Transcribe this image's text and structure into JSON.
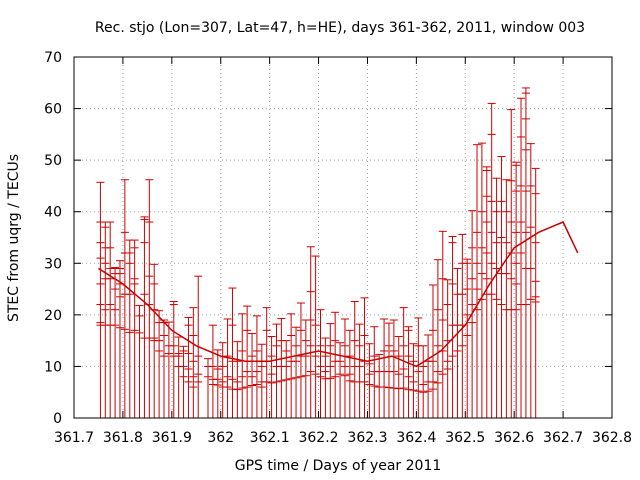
{
  "chart_data": {
    "type": "errorbar",
    "title": "Rec. stjo (Lon=307, Lat=47, h=HE), days 361-362, 2011, window 003",
    "xlabel": "GPS time / Days of year 2011",
    "ylabel": "STEC from uqrg / TECUs",
    "xlim": [
      361.7,
      362.8
    ],
    "ylim": [
      0,
      70
    ],
    "xticks": [
      361.7,
      361.8,
      361.9,
      362.0,
      362.1,
      362.2,
      362.3,
      362.4,
      362.5,
      362.6,
      362.7,
      362.8
    ],
    "xtick_labels": [
      "361.7",
      "361.8",
      "361.9",
      "362",
      "362.1",
      "362.2",
      "362.3",
      "362.4",
      "362.5",
      "362.6",
      "362.7",
      "362.8"
    ],
    "yticks": [
      0,
      10,
      20,
      30,
      40,
      50,
      60,
      70
    ],
    "ytick_labels": [
      "0",
      "10",
      "20",
      "30",
      "40",
      "50",
      "60",
      "70"
    ],
    "grid": true,
    "series": [
      {
        "name": "mean",
        "color": "#cc0000",
        "x": [
          361.75,
          361.8,
          361.85,
          361.9,
          361.95,
          362.0,
          362.05,
          362.1,
          362.15,
          362.2,
          362.25,
          362.3,
          362.35,
          362.4,
          362.45,
          362.5,
          362.55,
          362.6,
          362.65,
          362.7,
          362.73
        ],
        "y": [
          29,
          26,
          22,
          17,
          14,
          12,
          11,
          11,
          12,
          13,
          12,
          11,
          12,
          10,
          13,
          18,
          26,
          33,
          36,
          38,
          32
        ]
      }
    ],
    "points": [
      {
        "x": 361.754,
        "lo": 0,
        "hi": 45.7,
        "ticks": [
          45.7,
          38,
          34,
          31,
          26,
          22,
          18.5,
          18
        ]
      },
      {
        "x": 361.764,
        "lo": 0,
        "hi": 38.0,
        "ticks": [
          38,
          37,
          33,
          30,
          27,
          21,
          18
        ]
      },
      {
        "x": 361.774,
        "lo": 0,
        "hi": 38.0,
        "ticks": [
          38,
          33,
          29,
          27,
          22,
          18
        ]
      },
      {
        "x": 361.784,
        "lo": 0,
        "hi": 29.2,
        "ticks": [
          29.2,
          29,
          28,
          25,
          21,
          18
        ]
      },
      {
        "x": 361.794,
        "lo": 0,
        "hi": 30.5,
        "ticks": [
          30.5,
          29,
          28,
          26,
          23.5,
          17.5
        ]
      },
      {
        "x": 361.804,
        "lo": 0,
        "hi": 46.2,
        "ticks": [
          46.2,
          36,
          32,
          24,
          17.2
        ]
      },
      {
        "x": 361.814,
        "lo": 0,
        "hi": 34.5,
        "ticks": [
          34.5,
          32,
          30,
          24,
          16.6
        ]
      },
      {
        "x": 361.824,
        "lo": 0,
        "hi": 34.5,
        "ticks": [
          34.5,
          33,
          27,
          26,
          17
        ]
      },
      {
        "x": 361.834,
        "lo": 0,
        "hi": 21.8,
        "ticks": [
          21.8,
          19.8,
          16.5
        ]
      },
      {
        "x": 361.844,
        "lo": 0,
        "hi": 39.0,
        "ticks": [
          39,
          38.5,
          34,
          24,
          15.5
        ]
      },
      {
        "x": 361.854,
        "lo": 0,
        "hi": 46.2,
        "ticks": [
          46.2,
          38,
          27.5,
          22,
          15.5
        ]
      },
      {
        "x": 361.864,
        "lo": 0,
        "hi": 29.8,
        "ticks": [
          29.8,
          26,
          21,
          15.5,
          15
        ]
      },
      {
        "x": 361.874,
        "lo": 0,
        "hi": 20.8,
        "ticks": [
          20.8,
          18.5,
          15,
          13
        ]
      },
      {
        "x": 361.884,
        "lo": 0,
        "hi": 19.0,
        "ticks": [
          19,
          18.5,
          16,
          12
        ]
      },
      {
        "x": 361.894,
        "lo": 0,
        "hi": 18.6,
        "ticks": [
          18.6,
          14,
          12.5
        ]
      },
      {
        "x": 361.904,
        "lo": 0,
        "hi": 22.6,
        "ticks": [
          22.6,
          22,
          14,
          12
        ]
      },
      {
        "x": 361.914,
        "lo": 0,
        "hi": 15.7,
        "ticks": [
          15.7,
          12.5,
          12,
          10
        ]
      },
      {
        "x": 361.924,
        "lo": 0,
        "hi": 13.9,
        "ticks": [
          13.9,
          13,
          10,
          8
        ]
      },
      {
        "x": 361.934,
        "lo": 0,
        "hi": 19.5,
        "ticks": [
          19.5,
          18,
          12.5,
          9.5,
          7
        ]
      },
      {
        "x": 361.944,
        "lo": 0,
        "hi": 21.4,
        "ticks": [
          21.4,
          16,
          11,
          8,
          6
        ]
      },
      {
        "x": 361.954,
        "lo": 0,
        "hi": 27.5,
        "ticks": [
          27.5,
          12,
          8.5,
          7
        ]
      },
      {
        "x": 361.974,
        "lo": 0,
        "hi": 11.5,
        "ticks": [
          11.5,
          10,
          8
        ]
      },
      {
        "x": 361.984,
        "lo": 0,
        "hi": 18.0,
        "ticks": [
          18,
          10,
          7.5,
          6.5
        ]
      },
      {
        "x": 361.994,
        "lo": 0,
        "hi": 13.2,
        "ticks": [
          13.2,
          9.5,
          7.5,
          6.4
        ]
      },
      {
        "x": 362.004,
        "lo": 0,
        "hi": 14.6,
        "ticks": [
          14.6,
          10,
          7,
          6
        ]
      },
      {
        "x": 362.014,
        "lo": 0,
        "hi": 19.2,
        "ticks": [
          19.2,
          12,
          8,
          6
        ]
      },
      {
        "x": 362.024,
        "lo": 0,
        "hi": 25.2,
        "ticks": [
          25.2,
          18,
          11,
          7.5,
          5.6
        ]
      },
      {
        "x": 362.034,
        "lo": 0,
        "hi": 14.8,
        "ticks": [
          14.8,
          11,
          7,
          5.5
        ]
      },
      {
        "x": 362.044,
        "lo": 0,
        "hi": 20.2,
        "ticks": [
          20.2,
          13,
          8,
          5.8
        ]
      },
      {
        "x": 362.054,
        "lo": 0,
        "hi": 21.7,
        "ticks": [
          21.7,
          17,
          9,
          6
        ]
      },
      {
        "x": 362.064,
        "lo": 0,
        "hi": 16.4,
        "ticks": [
          16.4,
          12,
          8,
          6.3
        ]
      },
      {
        "x": 362.074,
        "lo": 0,
        "hi": 19.8,
        "ticks": [
          19.8,
          13,
          9,
          6.5
        ]
      },
      {
        "x": 362.084,
        "lo": 0,
        "hi": 14.3,
        "ticks": [
          14.3,
          10,
          7,
          6
        ]
      },
      {
        "x": 362.094,
        "lo": 0,
        "hi": 21.4,
        "ticks": [
          21.4,
          17,
          11,
          7
        ]
      },
      {
        "x": 362.104,
        "lo": 0,
        "hi": 15.8,
        "ticks": [
          15.8,
          12,
          8.5,
          6.8
        ]
      },
      {
        "x": 362.114,
        "lo": 0,
        "hi": 18.2,
        "ticks": [
          18.2,
          14,
          10,
          7
        ]
      },
      {
        "x": 362.124,
        "lo": 0,
        "hi": 19.3,
        "ticks": [
          19.3,
          15,
          10,
          7.2
        ]
      },
      {
        "x": 362.134,
        "lo": 0,
        "hi": 15.0,
        "ticks": [
          15,
          13,
          10,
          7.4
        ]
      },
      {
        "x": 362.144,
        "lo": 0,
        "hi": 20.2,
        "ticks": [
          20.2,
          16,
          11,
          7.6
        ]
      },
      {
        "x": 362.154,
        "lo": 0,
        "hi": 17.6,
        "ticks": [
          17.6,
          14,
          11,
          7.8
        ]
      },
      {
        "x": 362.164,
        "lo": 0,
        "hi": 22.3,
        "ticks": [
          22.3,
          17,
          12,
          8
        ]
      },
      {
        "x": 362.174,
        "lo": 0,
        "hi": 19.0,
        "ticks": [
          19,
          15,
          12,
          8.2
        ]
      },
      {
        "x": 362.184,
        "lo": 0,
        "hi": 33.2,
        "ticks": [
          33.2,
          24.5,
          19,
          14,
          9
        ]
      },
      {
        "x": 362.194,
        "lo": 0,
        "hi": 31.4,
        "ticks": [
          31.4,
          18,
          12,
          8.5
        ]
      },
      {
        "x": 362.204,
        "lo": 0,
        "hi": 21.0,
        "ticks": [
          21,
          14,
          10,
          8
        ]
      },
      {
        "x": 362.214,
        "lo": 0,
        "hi": 15.5,
        "ticks": [
          15.5,
          12,
          9,
          7.6
        ]
      },
      {
        "x": 362.224,
        "lo": 0,
        "hi": 18.3,
        "ticks": [
          18.3,
          14,
          10,
          7.7
        ]
      },
      {
        "x": 362.234,
        "lo": 0,
        "hi": 20.5,
        "ticks": [
          20.5,
          15,
          11,
          8
        ]
      },
      {
        "x": 362.244,
        "lo": 0,
        "hi": 14.6,
        "ticks": [
          14.6,
          11,
          8.5
        ]
      },
      {
        "x": 362.254,
        "lo": 0,
        "hi": 19.2,
        "ticks": [
          19.2,
          14,
          10,
          8.2
        ]
      },
      {
        "x": 362.264,
        "lo": 0,
        "hi": 17.0,
        "ticks": [
          17,
          12,
          8.5,
          7.2
        ]
      },
      {
        "x": 362.274,
        "lo": 0,
        "hi": 22.6,
        "ticks": [
          22.6,
          15,
          10,
          7
        ]
      },
      {
        "x": 362.284,
        "lo": 0,
        "hi": 18.2,
        "ticks": [
          18.2,
          14,
          10,
          7
        ]
      },
      {
        "x": 362.294,
        "lo": 0,
        "hi": 23.3,
        "ticks": [
          23.3,
          16,
          11,
          7
        ]
      },
      {
        "x": 362.304,
        "lo": 0,
        "hi": 14.4,
        "ticks": [
          14.4,
          10.5,
          8.5,
          6.5
        ]
      },
      {
        "x": 362.314,
        "lo": 0,
        "hi": 17.7,
        "ticks": [
          17.7,
          12,
          9,
          6.2
        ]
      },
      {
        "x": 362.324,
        "lo": 0,
        "hi": 12.3,
        "ticks": [
          12.3,
          9,
          6
        ]
      },
      {
        "x": 362.334,
        "lo": 0,
        "hi": 19.2,
        "ticks": [
          19.2,
          13,
          9,
          6
        ]
      },
      {
        "x": 362.344,
        "lo": 0,
        "hi": 18.4,
        "ticks": [
          18.4,
          14,
          9,
          5.9
        ]
      },
      {
        "x": 362.354,
        "lo": 0,
        "hi": 19.0,
        "ticks": [
          19,
          13,
          9,
          5.8
        ]
      },
      {
        "x": 362.364,
        "lo": 0,
        "hi": 15.8,
        "ticks": [
          15.8,
          12,
          8.5,
          5.7
        ]
      },
      {
        "x": 362.374,
        "lo": 0,
        "hi": 21.4,
        "ticks": [
          21.4,
          14,
          9.5,
          5.8
        ]
      },
      {
        "x": 362.384,
        "lo": 0,
        "hi": 17.7,
        "ticks": [
          17.7,
          17,
          12,
          8,
          5.5
        ]
      },
      {
        "x": 362.394,
        "lo": 0,
        "hi": 14.4,
        "ticks": [
          14.4,
          11,
          7,
          5.4
        ]
      },
      {
        "x": 362.404,
        "lo": 0,
        "hi": 19.4,
        "ticks": [
          19.4,
          14,
          9,
          5.2
        ]
      },
      {
        "x": 362.414,
        "lo": 0,
        "hi": 14.0,
        "ticks": [
          14,
          10,
          6.5,
          5
        ]
      },
      {
        "x": 362.424,
        "lo": 0,
        "hi": 16.1,
        "ticks": [
          16.1,
          11,
          7,
          5.2
        ]
      },
      {
        "x": 362.434,
        "lo": 0,
        "hi": 25.8,
        "ticks": [
          25.8,
          17,
          11,
          7,
          5.6
        ]
      },
      {
        "x": 362.444,
        "lo": 0,
        "hi": 30.7,
        "ticks": [
          30.7,
          21,
          14,
          9,
          6.8
        ]
      },
      {
        "x": 362.454,
        "lo": 0,
        "hi": 36.2,
        "ticks": [
          36.2,
          27,
          19,
          13,
          8.5
        ]
      },
      {
        "x": 362.464,
        "lo": 0,
        "hi": 26.8,
        "ticks": [
          26.8,
          22,
          15,
          11,
          9.5
        ]
      },
      {
        "x": 362.474,
        "lo": 0,
        "hi": 35.2,
        "ticks": [
          35.2,
          34,
          26,
          18,
          12
        ]
      },
      {
        "x": 362.484,
        "lo": 0,
        "hi": 29.0,
        "ticks": [
          29,
          24,
          18,
          13
        ]
      },
      {
        "x": 362.494,
        "lo": 0,
        "hi": 35.6,
        "ticks": [
          35.6,
          30,
          24,
          18,
          14
        ]
      },
      {
        "x": 362.504,
        "lo": 0,
        "hi": 30.8,
        "ticks": [
          30.8,
          30,
          25,
          20,
          16
        ]
      },
      {
        "x": 362.514,
        "lo": 0,
        "hi": 40.2,
        "ticks": [
          40.2,
          33,
          27,
          22,
          18.5
        ]
      },
      {
        "x": 362.524,
        "lo": 0,
        "hi": 53.0,
        "ticks": [
          53,
          36,
          30,
          25,
          21
        ]
      },
      {
        "x": 362.534,
        "lo": 0,
        "hi": 53.3,
        "ticks": [
          53.3,
          40,
          33,
          28,
          23
        ]
      },
      {
        "x": 362.544,
        "lo": 0,
        "hi": 48.7,
        "ticks": [
          48.7,
          48,
          43,
          38,
          32,
          27,
          24
        ]
      },
      {
        "x": 362.554,
        "lo": 0,
        "hi": 61.0,
        "ticks": [
          61,
          55,
          42,
          36,
          30,
          24
        ]
      },
      {
        "x": 362.564,
        "lo": 0,
        "hi": 46.5,
        "ticks": [
          46.5,
          40,
          34,
          29,
          23
        ]
      },
      {
        "x": 362.574,
        "lo": 0,
        "hi": 50.7,
        "ticks": [
          50.7,
          42,
          35,
          28,
          22
        ]
      },
      {
        "x": 362.584,
        "lo": 0,
        "hi": 46.2,
        "ticks": [
          46.2,
          40,
          34,
          28,
          21
        ]
      },
      {
        "x": 362.594,
        "lo": 0,
        "hi": 59.8,
        "ticks": [
          59.8,
          46,
          38,
          32,
          27,
          21
        ]
      },
      {
        "x": 362.604,
        "lo": 0,
        "hi": 49.6,
        "ticks": [
          49.6,
          49,
          44,
          36,
          30,
          26,
          21
        ]
      },
      {
        "x": 362.614,
        "lo": 0,
        "hi": 62.0,
        "ticks": [
          62,
          54.5,
          45,
          38,
          32,
          22
        ]
      },
      {
        "x": 362.624,
        "lo": 0,
        "hi": 64.0,
        "ticks": [
          64,
          63,
          58,
          52,
          44,
          36,
          29,
          22
        ]
      },
      {
        "x": 362.634,
        "lo": 0,
        "hi": 53.2,
        "ticks": [
          53.2,
          45,
          37,
          29,
          23
        ]
      },
      {
        "x": 362.644,
        "lo": 0,
        "hi": 48.4,
        "ticks": [
          48.4,
          43.5,
          34,
          26.5,
          23.5,
          22.5
        ]
      }
    ]
  }
}
